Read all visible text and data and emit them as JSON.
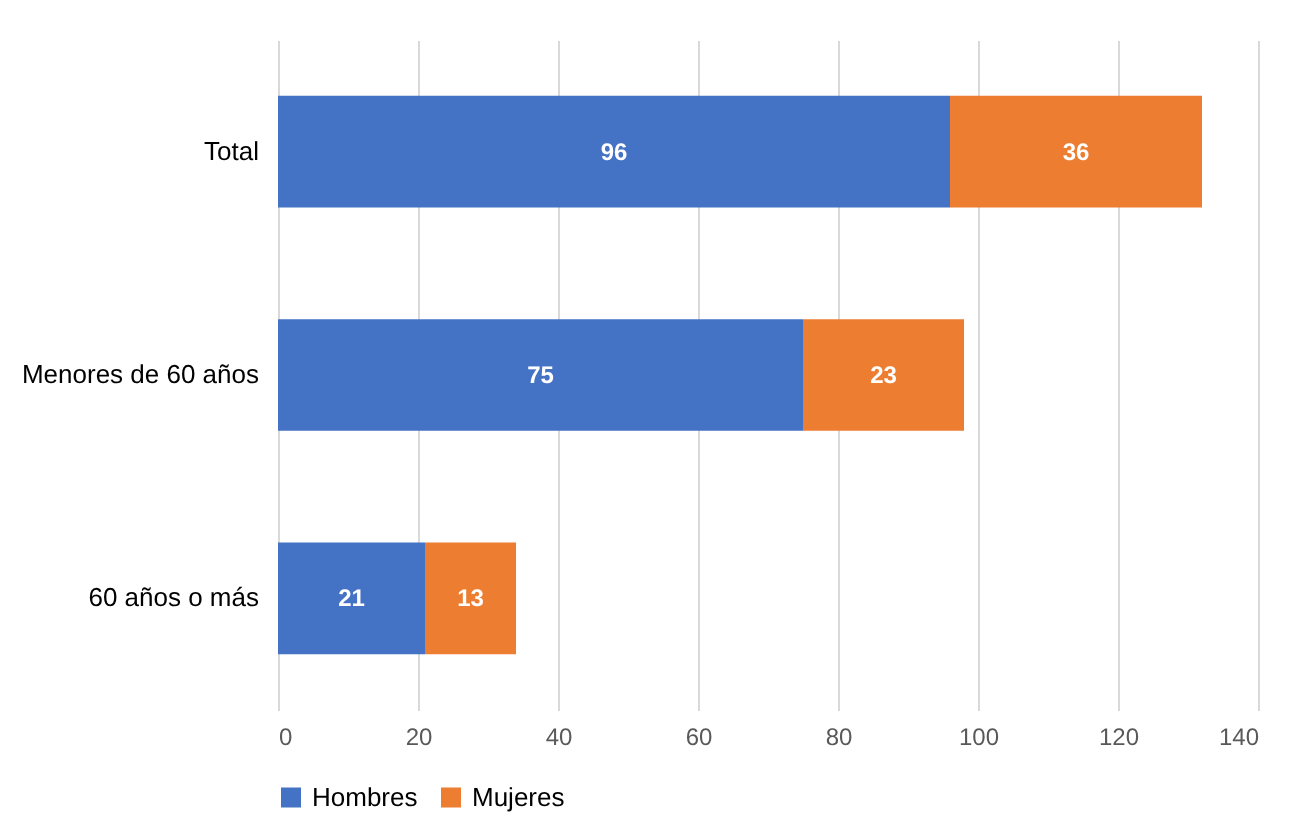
{
  "chart_data": {
    "type": "bar",
    "orientation": "horizontal",
    "stacked": true,
    "categories": [
      "Total",
      "Menores de 60 años",
      "60 años o más"
    ],
    "series": [
      {
        "name": "Hombres",
        "color": "#4472c4",
        "values": [
          96,
          75,
          21
        ]
      },
      {
        "name": "Mujeres",
        "color": "#ed7d31",
        "values": [
          36,
          23,
          13
        ]
      }
    ],
    "xlim": [
      0,
      140
    ],
    "xticks": [
      0,
      20,
      40,
      60,
      80,
      100,
      120,
      140
    ],
    "grid": "x",
    "legend": "bottom",
    "data_labels": true
  }
}
